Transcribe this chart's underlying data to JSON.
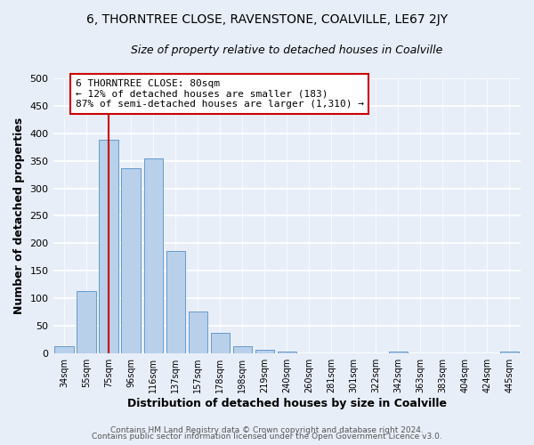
{
  "title": "6, THORNTREE CLOSE, RAVENSTONE, COALVILLE, LE67 2JY",
  "subtitle": "Size of property relative to detached houses in Coalville",
  "xlabel": "Distribution of detached houses by size in Coalville",
  "ylabel": "Number of detached properties",
  "bar_labels": [
    "34sqm",
    "55sqm",
    "75sqm",
    "96sqm",
    "116sqm",
    "137sqm",
    "157sqm",
    "178sqm",
    "198sqm",
    "219sqm",
    "240sqm",
    "260sqm",
    "281sqm",
    "301sqm",
    "322sqm",
    "342sqm",
    "363sqm",
    "383sqm",
    "404sqm",
    "424sqm",
    "445sqm"
  ],
  "bar_values": [
    13,
    113,
    388,
    337,
    354,
    186,
    76,
    38,
    13,
    6,
    4,
    0,
    0,
    0,
    0,
    4,
    0,
    0,
    0,
    0,
    4
  ],
  "bar_color": "#b8d0ea",
  "bar_edgecolor": "#6699cc",
  "vline_x_idx": 2,
  "vline_color": "#cc0000",
  "ylim": [
    0,
    500
  ],
  "yticks": [
    0,
    50,
    100,
    150,
    200,
    250,
    300,
    350,
    400,
    450,
    500
  ],
  "annotation_title": "6 THORNTREE CLOSE: 80sqm",
  "annotation_line1": "← 12% of detached houses are smaller (183)",
  "annotation_line2": "87% of semi-detached houses are larger (1,310) →",
  "annotation_box_color": "#ffffff",
  "annotation_box_edgecolor": "#cc0000",
  "footer1": "Contains HM Land Registry data © Crown copyright and database right 2024.",
  "footer2": "Contains public sector information licensed under the Open Government Licence v3.0.",
  "background_color": "#e8eef8",
  "plot_bg_color": "#e8eef8",
  "grid_color": "#ffffff",
  "title_fontsize": 10,
  "subtitle_fontsize": 9
}
